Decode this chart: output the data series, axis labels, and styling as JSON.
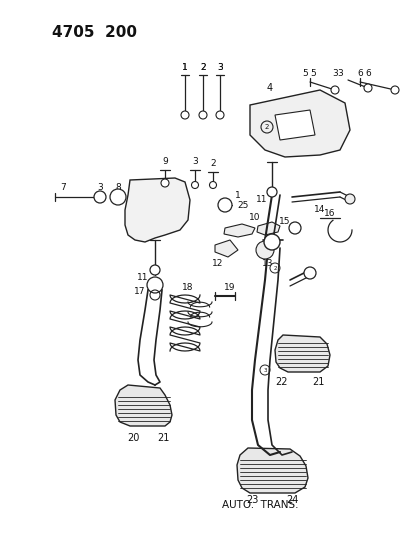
{
  "title": "4705  200",
  "subtitle": "AUTO.  TRANS.",
  "bg": "#ffffff",
  "lc": "#222222",
  "tc": "#111111",
  "fw": 4.08,
  "fh": 5.33,
  "dpi": 100
}
